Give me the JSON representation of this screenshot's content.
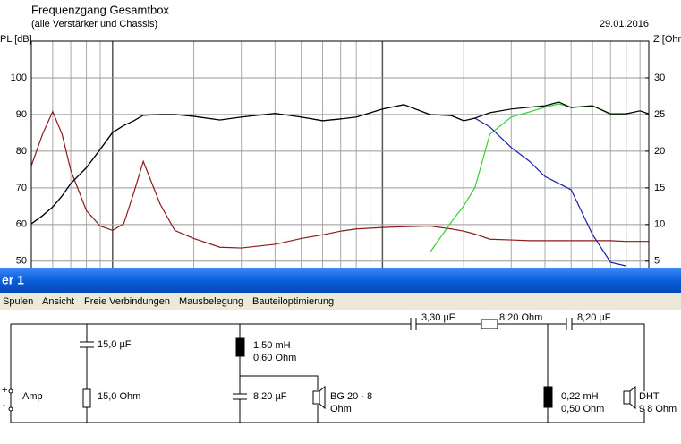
{
  "chart_data": {
    "type": "line",
    "title": "Frequenzgang Gesamtbox",
    "subtitle": "(alle Verstärker und Chassis)",
    "date": "29.01.2016",
    "y_label": "PL [dB]",
    "y2_label": "Z [Ohm",
    "log_x": true,
    "grid": true,
    "x": [
      50,
      55,
      60,
      65,
      70,
      80,
      90,
      100,
      110,
      120,
      130,
      150,
      170,
      200,
      250,
      300,
      400,
      500,
      600,
      700,
      800,
      1000,
      1200,
      1500,
      1800,
      2000,
      2200,
      2500,
      3000,
      3500,
      4000,
      4500,
      5000,
      6000,
      7000,
      8000,
      9000,
      9700
    ],
    "xlim": [
      50,
      9700
    ],
    "xticks": [
      50,
      60,
      70,
      80,
      90,
      100,
      200,
      300,
      400,
      500,
      600,
      700,
      800,
      900,
      1000,
      2000,
      3000,
      4000,
      5000,
      6000,
      7000,
      8000,
      9000
    ],
    "ylim": [
      48,
      110
    ],
    "yticks": [
      50,
      60,
      70,
      80,
      90,
      100
    ],
    "y2lim": [
      4,
      35
    ],
    "y2ticks": [
      5,
      10,
      15,
      20,
      25,
      30
    ],
    "series": [
      {
        "color": "#8b1a1a",
        "axis": "y2",
        "values": [
          18.0,
          22.3,
          25.4,
          22.3,
          17.4,
          11.9,
          9.8,
          9.2,
          10.1,
          14.4,
          18.6,
          12.8,
          9.2,
          8.1,
          6.9,
          6.8,
          7.3,
          8.1,
          8.6,
          9.1,
          9.4,
          9.6,
          9.7,
          9.8,
          9.4,
          9.1,
          8.7,
          8.0,
          7.9,
          7.8,
          7.8,
          7.8,
          7.8,
          7.8,
          7.8,
          7.7,
          7.7,
          7.7
        ]
      },
      {
        "color": "#32d232",
        "values": [
          null,
          null,
          null,
          null,
          null,
          null,
          null,
          null,
          null,
          null,
          null,
          null,
          null,
          null,
          null,
          null,
          null,
          null,
          null,
          null,
          null,
          null,
          null,
          52.4,
          60.7,
          65.1,
          70,
          84.6,
          89.3,
          90.7,
          92,
          92.9,
          92,
          92.4,
          90,
          90.2,
          91,
          90.2
        ]
      },
      {
        "color": "#1c1cb0",
        "values": [
          60.2,
          62.4,
          64.8,
          67.8,
          71.2,
          75.5,
          80.5,
          85.1,
          87,
          88.3,
          89.8,
          90,
          90,
          89.5,
          88.5,
          89.3,
          90.3,
          89.3,
          88.3,
          88.8,
          89.3,
          91.5,
          92.7,
          90,
          89.7,
          88.3,
          89,
          86.6,
          81,
          77.3,
          73.1,
          71.2,
          69.5,
          57.3,
          49.7,
          48.7,
          null,
          null
        ]
      },
      {
        "color": "#000000",
        "values": [
          60.2,
          62.4,
          64.8,
          67.8,
          71.2,
          75.5,
          80.5,
          85.1,
          87,
          88.3,
          89.8,
          90,
          90,
          89.5,
          88.5,
          89.3,
          90.3,
          89.3,
          88.3,
          88.8,
          89.3,
          91.5,
          92.7,
          90,
          89.7,
          88.3,
          89,
          90.5,
          91.5,
          92,
          92.4,
          93.4,
          91.9,
          92.4,
          90.2,
          90.2,
          91,
          90.2
        ]
      }
    ]
  },
  "window": {
    "title": "er 1",
    "menu": [
      "Spulen",
      "Ansicht",
      "Freie Verbindungen",
      "Mausbelegung",
      "Bauteiloptimierung"
    ]
  },
  "schematic": {
    "source": {
      "plus": "+",
      "minus": "-",
      "label": "Amp"
    },
    "c1": "15,0 µF",
    "r1": "15,0 Ohm",
    "l1": "1,50 mH",
    "l1_r": "0,60 Ohm",
    "c2": "8,20 µF",
    "woofer": "BG 20 - 8",
    "woofer_unit": "Ohm",
    "c3": "3,30 µF",
    "r2": "8,20 Ohm",
    "c4": "8,20 µF",
    "l2": "0,22 mH",
    "l2_r": "0,50 Ohm",
    "tweeter": "DHT",
    "tweeter_unit": "9 8 Ohm"
  }
}
